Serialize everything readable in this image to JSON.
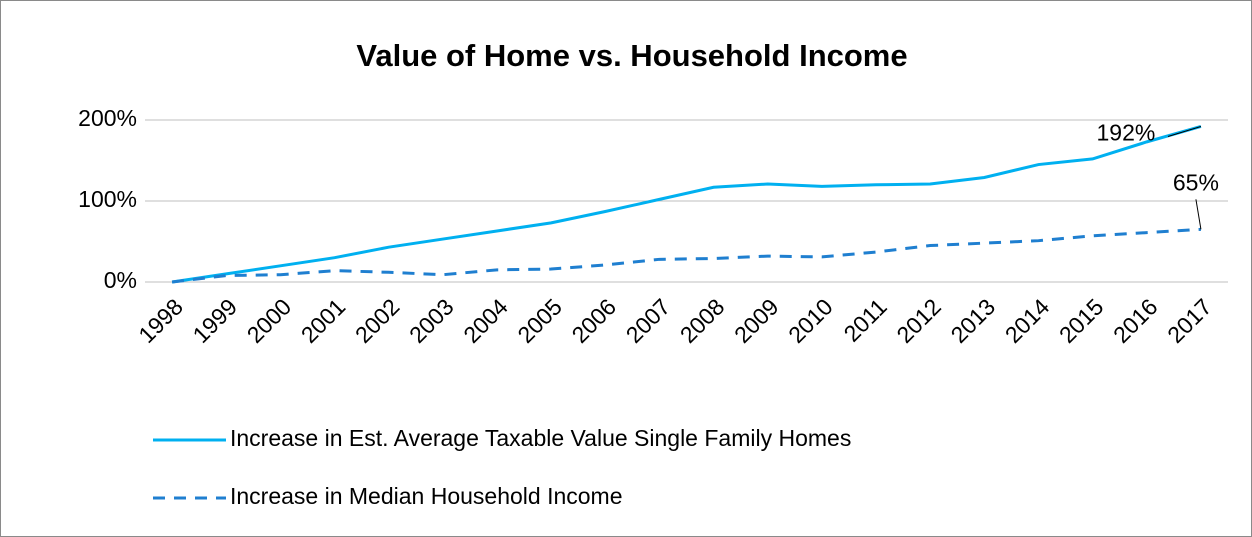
{
  "chart_data": {
    "type": "line",
    "title": "Value of Home vs. Household Income",
    "categories": [
      "1998",
      "1999",
      "2000",
      "2001",
      "2002",
      "2003",
      "2004",
      "2005",
      "2006",
      "2007",
      "2008",
      "2009",
      "2010",
      "2011",
      "2012",
      "2013",
      "2014",
      "2015",
      "2016",
      "2017"
    ],
    "series": [
      {
        "name": "Increase in Est. Average Taxable Value Single Family Homes",
        "color": "#00b0f0",
        "dash": "solid",
        "values": [
          0,
          10,
          20,
          30,
          43,
          53,
          63,
          73,
          87,
          102,
          117,
          121,
          118,
          120,
          121,
          129,
          145,
          152,
          173,
          192
        ],
        "value_labels": [
          null,
          null,
          null,
          null,
          null,
          null,
          null,
          null,
          null,
          null,
          null,
          null,
          null,
          null,
          null,
          null,
          null,
          null,
          null,
          "192%"
        ]
      },
      {
        "name": "Increase in Median Household Income",
        "color": "#1f7fd0",
        "dash": "dashed",
        "values": [
          0,
          8,
          9,
          14,
          12,
          9,
          15,
          16,
          21,
          28,
          29,
          32,
          31,
          37,
          45,
          48,
          51,
          57,
          61,
          65
        ],
        "value_labels": [
          null,
          null,
          null,
          null,
          null,
          null,
          null,
          null,
          null,
          null,
          null,
          null,
          null,
          null,
          null,
          null,
          null,
          null,
          null,
          "65%"
        ]
      }
    ],
    "ylim": [
      0,
      200
    ],
    "yticks": [
      {
        "value": 0,
        "label": "0%"
      },
      {
        "value": 100,
        "label": "100%"
      },
      {
        "value": 200,
        "label": "200%"
      }
    ],
    "grid": true,
    "legend": "bottom"
  }
}
